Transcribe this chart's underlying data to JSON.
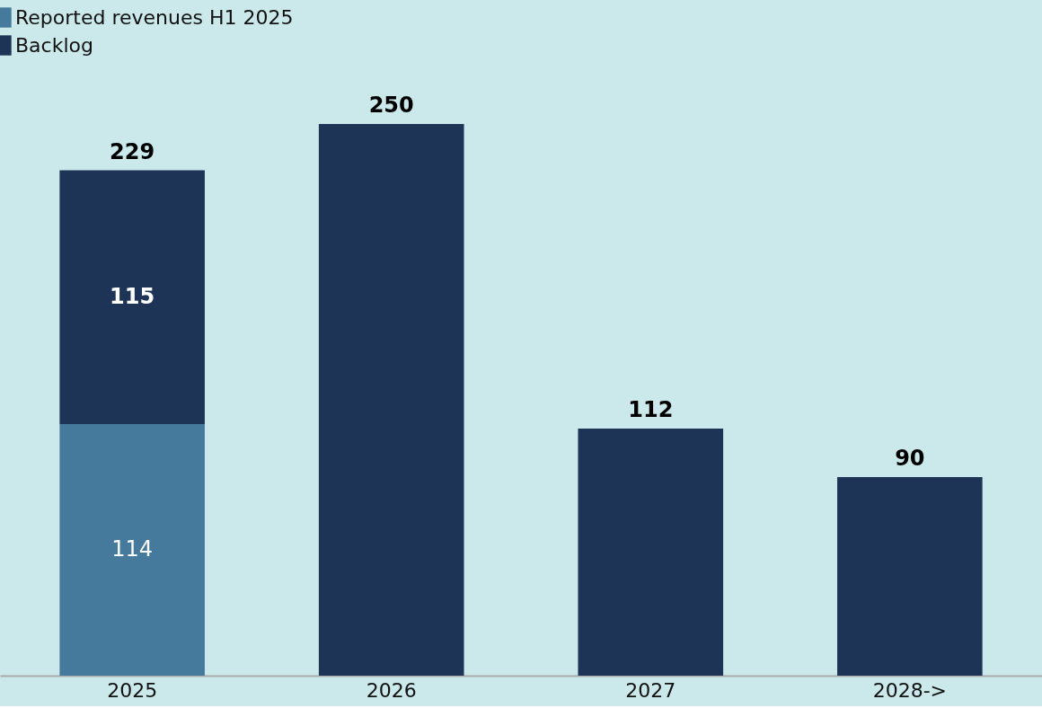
{
  "chart_data": {
    "type": "bar",
    "stacked": true,
    "legend": "top left",
    "grid": false,
    "categories": [
      "2025",
      "2026",
      "2027",
      "2028->"
    ],
    "series": [
      {
        "name": "Reported revenues H1 2025",
        "color": "#457a9c",
        "values": [
          114,
          null,
          null,
          null
        ],
        "value_labels": [
          "114",
          null,
          null,
          null
        ]
      },
      {
        "name": "Backlog",
        "color": "#1e3456",
        "values": [
          115,
          250,
          112,
          90
        ],
        "value_labels": [
          "115",
          "250",
          "112",
          "90"
        ]
      }
    ],
    "totals": [
      "229",
      null,
      null,
      null
    ]
  }
}
